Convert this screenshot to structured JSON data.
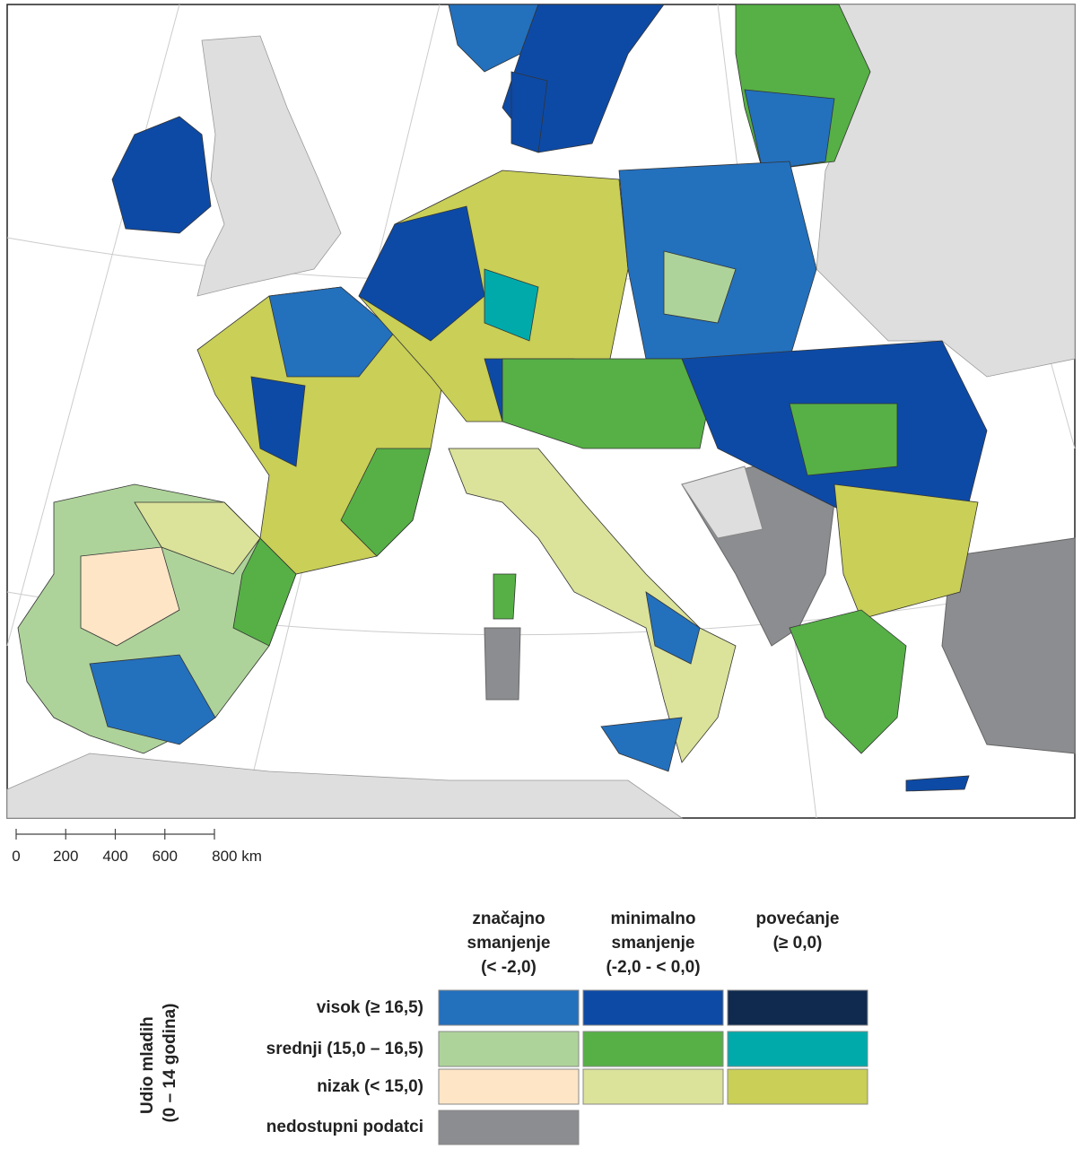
{
  "scale_bar": {
    "ticks": [
      "0",
      "200",
      "400",
      "600",
      "800 km"
    ]
  },
  "legend": {
    "axis_title": [
      "Udio mladih",
      "(0 – 14 godina)"
    ],
    "columns": [
      [
        "značajno",
        "smanjenje",
        "(< -2,0)"
      ],
      [
        "minimalno",
        "smanjenje",
        "(-2,0 - < 0,0)"
      ],
      [
        "povećanje",
        "(≥ 0,0)"
      ]
    ],
    "rows": [
      {
        "label": "visok (≥ 16,5)",
        "colors": [
          "#2370bd",
          "#0d4aa6",
          "#0f2a4e"
        ]
      },
      {
        "label": "srednji (15,0 – 16,5)",
        "colors": [
          "#aed39a",
          "#56b046",
          "#00aaaa"
        ]
      },
      {
        "label": "nizak (< 15,0)",
        "colors": [
          "#fde5c6",
          "#dbe29a",
          "#c9cf57"
        ]
      }
    ],
    "no_data": {
      "label": "nedostupni podatci",
      "color": "#8c8d90"
    }
  }
}
